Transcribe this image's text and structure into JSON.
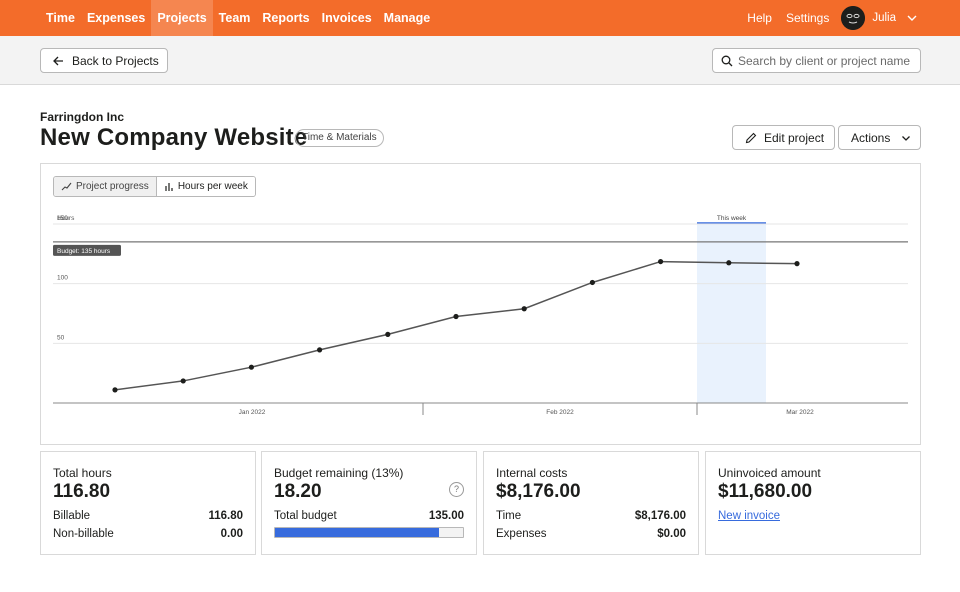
{
  "nav": {
    "items": [
      {
        "label": "Time",
        "active": false
      },
      {
        "label": "Expenses",
        "active": false
      },
      {
        "label": "Projects",
        "active": true
      },
      {
        "label": "Team",
        "active": false
      },
      {
        "label": "Reports",
        "active": false
      },
      {
        "label": "Invoices",
        "active": false
      },
      {
        "label": "Manage",
        "active": false
      }
    ],
    "help": "Help",
    "settings": "Settings",
    "user": "Julia"
  },
  "subheader": {
    "back_label": "Back to Projects",
    "search_placeholder": "Search by client or project name"
  },
  "project": {
    "client": "Farringdon Inc",
    "title": "New Company Website",
    "badge": "Time & Materials",
    "edit_label": "Edit project",
    "actions_label": "Actions"
  },
  "chart_toggle": {
    "progress": "Project progress",
    "hours": "Hours per week"
  },
  "chart_data": {
    "type": "line",
    "ylabel": "Hours",
    "ylim": [
      0,
      150
    ],
    "yticks": [
      50,
      100,
      150
    ],
    "budget_value": 135,
    "budget_label": "Budget: 135 hours",
    "this_week_label": "This week",
    "x_labels": [
      "Jan 2022",
      "Feb 2022",
      "Mar 2022"
    ],
    "series": [
      {
        "values": [
          11,
          18.5,
          30,
          44.5,
          57.5,
          72.5,
          79,
          101,
          118.5,
          117.5,
          116.8
        ]
      }
    ],
    "grid": true
  },
  "cards": {
    "total_hours": {
      "label": "Total hours",
      "value": "116.80",
      "billable_label": "Billable",
      "billable_value": "116.80",
      "nonbillable_label": "Non-billable",
      "nonbillable_value": "0.00"
    },
    "budget": {
      "label": "Budget remaining (13%)",
      "value": "18.20",
      "total_label": "Total budget",
      "total_value": "135.00",
      "used_fraction": 0.87,
      "help": "?"
    },
    "internal": {
      "label": "Internal costs",
      "value": "$8,176.00",
      "time_label": "Time",
      "time_value": "$8,176.00",
      "expenses_label": "Expenses",
      "expenses_value": "$0.00"
    },
    "uninvoiced": {
      "label": "Uninvoiced amount",
      "value": "$11,680.00",
      "link": "New invoice"
    }
  },
  "colors": {
    "brand": "#f36c2a",
    "accent": "#376bdd",
    "line": "#555555"
  }
}
